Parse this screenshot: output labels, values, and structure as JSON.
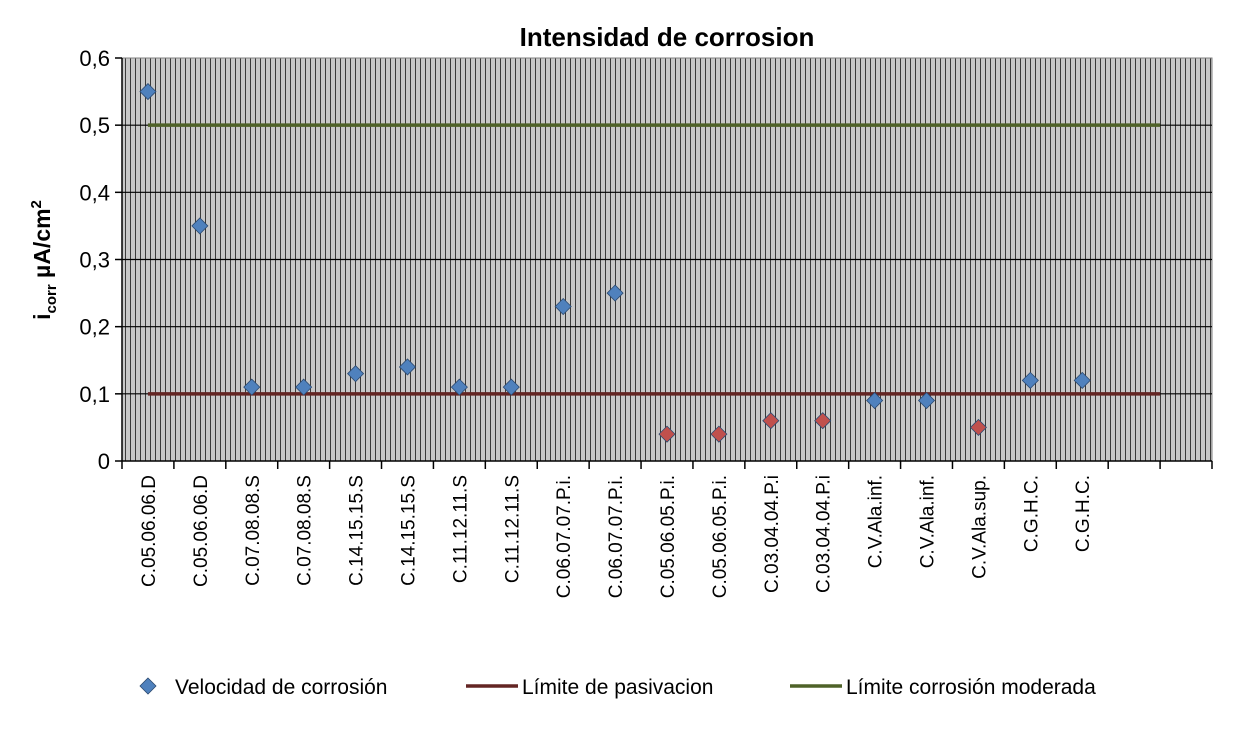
{
  "chart_data": {
    "type": "scatter",
    "title": "Intensidad de corrosion",
    "ylabel": {
      "main": "i",
      "sub": "corr",
      "unit": " µA/cm",
      "sup": "2"
    },
    "xlabel": "",
    "ylim": [
      0,
      0.6
    ],
    "yticks": [
      "0",
      "0,1",
      "0,2",
      "0,3",
      "0,4",
      "0,5",
      "0,6"
    ],
    "ytick_values": [
      0,
      0.1,
      0.2,
      0.3,
      0.4,
      0.5,
      0.6
    ],
    "grid": true,
    "categories": [
      "C.05.06.06.D",
      "C.05.06.06.D",
      "C.07.08.08.S",
      "C.07.08.08.S",
      "C.14.15.15.S",
      "C.14.15.15.S",
      "C.11.12.11.S",
      "C.11.12.11.S",
      "C.06.07.07.P.i.",
      "C.06.07.07.P.i.",
      "C.05.06.05.P.i.",
      "C.05.06.05.P.i.",
      "C.03.04.04.P.i",
      "C.03.04.04.P.i",
      "C.V.Ala.inf.",
      "C.V.Ala.inf.",
      "C.V.Ala.sup.",
      "C.G.H.C.",
      "C.G.H.C."
    ],
    "series": [
      {
        "name": "Velocidad de corrosión",
        "kind": "markers",
        "color": "#4f81bd",
        "alt_color": "#c0504d",
        "values": [
          0.55,
          0.35,
          0.11,
          0.11,
          0.13,
          0.14,
          0.11,
          0.11,
          0.23,
          0.25,
          0.04,
          0.04,
          0.06,
          0.06,
          0.09,
          0.09,
          0.05,
          0.12,
          0.12
        ],
        "highlight": [
          false,
          false,
          false,
          false,
          false,
          false,
          false,
          false,
          false,
          false,
          true,
          true,
          true,
          true,
          false,
          false,
          true,
          false,
          false
        ]
      },
      {
        "name": "Límite de pasivacion",
        "kind": "line",
        "color": "#632523",
        "value": 0.1
      },
      {
        "name": "Límite corrosión moderada",
        "kind": "line",
        "color": "#4f6228",
        "value": 0.5
      }
    ],
    "legend_position": "bottom"
  }
}
